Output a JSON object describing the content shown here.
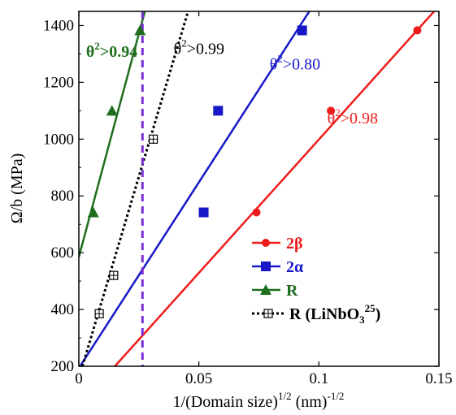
{
  "chart_data": {
    "type": "scatter",
    "xlabel": {
      "base": "1/(Domain size)",
      "sup1": "1/2",
      "mid": " (nm)",
      "sup2": "-1/2"
    },
    "ylabel": "Ω/b (MPa)",
    "xlim": [
      0,
      0.15
    ],
    "ylim": [
      200,
      1450
    ],
    "xticks": [
      "0",
      "0.05",
      "0.1",
      "0.15"
    ],
    "yticks": [
      "200",
      "400",
      "600",
      "800",
      "1000",
      "1200",
      "1400"
    ],
    "xtick_values": [
      0,
      0.05,
      0.1,
      0.15
    ],
    "ytick_values": [
      200,
      400,
      600,
      800,
      1000,
      1200,
      1400
    ],
    "grid": false,
    "legend_position": "bottom-right",
    "vline": {
      "x": 0.0265,
      "color": "#7b2fd6",
      "style": "dashed"
    },
    "series": [
      {
        "name": "2β",
        "color": "#ee1c1c",
        "marker": "circle",
        "line": "solid",
        "points": [
          [
            0.074,
            742
          ],
          [
            0.105,
            1100
          ],
          [
            0.141,
            1383
          ]
        ],
        "fit": [
          [
            0.015,
            200
          ],
          [
            0.148,
            1450
          ]
        ],
        "annotation": {
          "pre": "θ",
          "sup": "2",
          "post": ">0.98",
          "x": 0.1035,
          "y": 1055
        }
      },
      {
        "name": "2α",
        "color": "#1717c8",
        "marker": "square",
        "line": "solid",
        "points": [
          [
            0.052,
            742
          ],
          [
            0.058,
            1100
          ],
          [
            0.093,
            1383
          ]
        ],
        "fit": [
          [
            0.0005,
            200
          ],
          [
            0.096,
            1450
          ]
        ],
        "annotation": {
          "pre": "θ",
          "sup": "2",
          "post": ">0.80",
          "x": 0.0795,
          "y": 1245
        }
      },
      {
        "name": "R",
        "color": "#1e6e1e",
        "marker": "triangle",
        "line": "solid",
        "points": [
          [
            0.006,
            742
          ],
          [
            0.0138,
            1100
          ],
          [
            0.0255,
            1383
          ]
        ],
        "fit": [
          [
            0,
            585
          ],
          [
            0.0275,
            1450
          ]
        ],
        "annotation": {
          "pre": "θ",
          "sup": "2",
          "post": ">0.94",
          "x": 0.003,
          "y": 1290
        }
      },
      {
        "name": "R (LiNbO",
        "name_sub": "3",
        "name_sup": "25",
        "name_close": ")",
        "color": "#000000",
        "marker": "open-square-cross",
        "line": "dotted",
        "points": [
          [
            0.0085,
            385
          ],
          [
            0.0145,
            520
          ],
          [
            0.031,
            1000
          ]
        ],
        "fit": [
          [
            0.0015,
            200
          ],
          [
            0.0455,
            1450
          ]
        ],
        "annotation": {
          "pre": "θ",
          "sup": "2",
          "post": ">0.99",
          "x": 0.0395,
          "y": 1300
        }
      }
    ]
  }
}
